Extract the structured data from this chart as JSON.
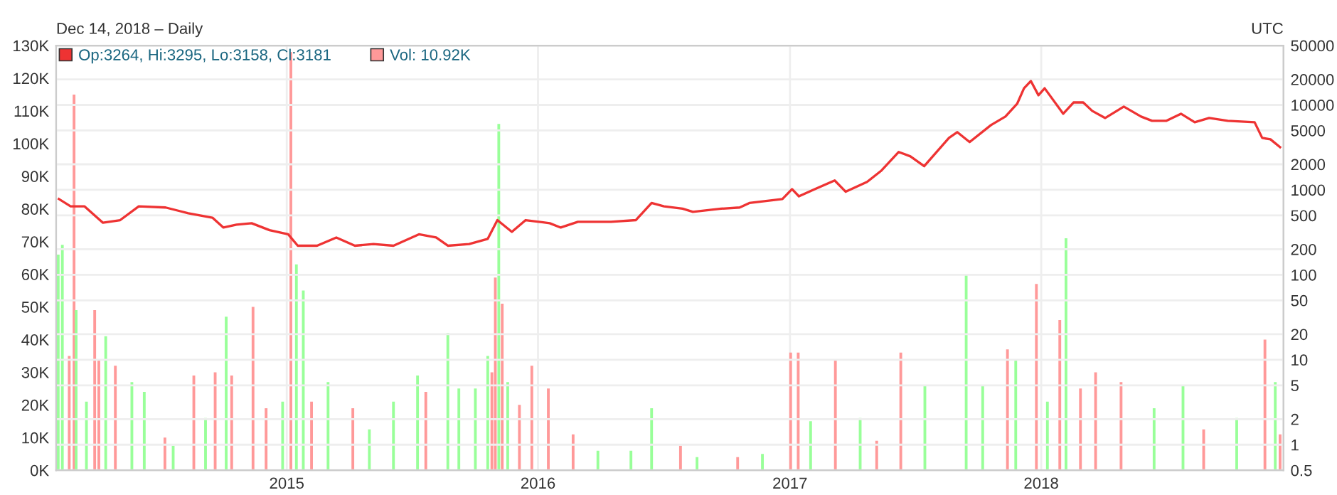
{
  "chart_data": {
    "type": "line",
    "subtitle": "Dec 14, 2018 – Daily",
    "annotations": [
      "UTC"
    ],
    "xlim": [
      "2014-01-31",
      "2018-12-19"
    ],
    "xticks": [
      {
        "value": "2015-01-01",
        "label": "2015"
      },
      {
        "value": "2016-01-01",
        "label": "2016"
      },
      {
        "value": "2017-01-01",
        "label": "2017"
      },
      {
        "value": "2018-01-01",
        "label": "2018"
      }
    ],
    "ylim": [
      0,
      130
    ],
    "yticks": [
      {
        "value": 0,
        "label": "0K"
      },
      {
        "value": 10,
        "label": "10K"
      },
      {
        "value": 20,
        "label": "20K"
      },
      {
        "value": 30,
        "label": "30K"
      },
      {
        "value": 40,
        "label": "40K"
      },
      {
        "value": 50,
        "label": "50K"
      },
      {
        "value": 60,
        "label": "60K"
      },
      {
        "value": 70,
        "label": "70K"
      },
      {
        "value": 80,
        "label": "80K"
      },
      {
        "value": 90,
        "label": "90K"
      },
      {
        "value": 100,
        "label": "100K"
      },
      {
        "value": 110,
        "label": "110K"
      },
      {
        "value": 120,
        "label": "120K"
      },
      {
        "value": 130,
        "label": "130K"
      }
    ],
    "y2lim": [
      0.5,
      50000
    ],
    "y2ticks": [
      0.5,
      1,
      2,
      5,
      10,
      20,
      50,
      100,
      200,
      500,
      1000,
      2000,
      5000,
      10000,
      20000,
      50000
    ],
    "log": "y2",
    "grid": true,
    "legend": "top left",
    "series": [
      {
        "name": "Op:3264, Hi:3295, Lo:3158, Cl:3181",
        "axis": "y2",
        "color": "#ee3333",
        "x": [
          "2014-02-04",
          "2014-02-21",
          "2014-03-13",
          "2014-04-09",
          "2014-05-04",
          "2014-05-31",
          "2014-07-09",
          "2014-08-11",
          "2014-09-15",
          "2014-10-01",
          "2014-10-20",
          "2014-11-11",
          "2014-12-07",
          "2015-01-03",
          "2015-01-17",
          "2015-02-14",
          "2015-03-14",
          "2015-04-10",
          "2015-05-07",
          "2015-06-05",
          "2015-07-12",
          "2015-08-06",
          "2015-08-23",
          "2015-09-23",
          "2015-10-20",
          "2015-11-03",
          "2015-11-24",
          "2015-12-14",
          "2016-01-18",
          "2016-02-03",
          "2016-02-28",
          "2016-04-16",
          "2016-05-22",
          "2016-06-14",
          "2016-07-02",
          "2016-07-29",
          "2016-08-13",
          "2016-09-23",
          "2016-10-20",
          "2016-11-03",
          "2016-12-21",
          "2017-01-04",
          "2017-01-14",
          "2017-02-06",
          "2017-03-07",
          "2017-03-23",
          "2017-04-23",
          "2017-05-14",
          "2017-06-08",
          "2017-06-25",
          "2017-07-15",
          "2017-08-20",
          "2017-09-01",
          "2017-09-19",
          "2017-10-20",
          "2017-11-10",
          "2017-11-27",
          "2017-12-07",
          "2017-12-17",
          "2017-12-28",
          "2018-01-06",
          "2018-02-02",
          "2018-02-17",
          "2018-03-03",
          "2018-03-16",
          "2018-04-04",
          "2018-05-01",
          "2018-05-26",
          "2018-06-11",
          "2018-07-02",
          "2018-07-23",
          "2018-08-12",
          "2018-09-02",
          "2018-09-29",
          "2018-11-07",
          "2018-11-18",
          "2018-11-30",
          "2018-12-14"
        ],
        "values": [
          780,
          640,
          640,
          410,
          440,
          640,
          620,
          530,
          470,
          360,
          390,
          405,
          335,
          300,
          220,
          220,
          275,
          220,
          230,
          220,
          300,
          275,
          220,
          230,
          265,
          440,
          320,
          440,
          405,
          360,
          420,
          420,
          440,
          700,
          640,
          600,
          550,
          600,
          620,
          700,
          780,
          1020,
          840,
          1020,
          1290,
          950,
          1240,
          1690,
          2790,
          2480,
          1900,
          4090,
          4780,
          3650,
          5790,
          7300,
          10300,
          15700,
          19100,
          13000,
          15700,
          7870,
          10700,
          10700,
          8510,
          7010,
          9550,
          7300,
          6500,
          6500,
          7870,
          6250,
          7010,
          6500,
          6250,
          4090,
          3935,
          3181
        ]
      },
      {
        "name": "Vol: 10.92K",
        "type": "bar",
        "color": "#ff9999",
        "x": [
          "2014-02-03",
          "2014-02-09",
          "2014-02-19",
          "2014-02-26",
          "2014-03-01",
          "2014-03-16",
          "2014-03-28",
          "2014-04-03",
          "2014-04-13",
          "2014-04-27",
          "2014-05-21",
          "2014-06-08",
          "2014-07-08",
          "2014-07-20",
          "2014-08-19",
          "2014-09-05",
          "2014-09-19",
          "2014-10-05",
          "2014-10-13",
          "2014-11-13",
          "2014-12-02",
          "2014-12-26",
          "2015-01-07",
          "2015-01-15",
          "2015-01-25",
          "2015-02-06",
          "2015-03-02",
          "2015-04-07",
          "2015-05-01",
          "2015-06-05",
          "2015-07-10",
          "2015-07-22",
          "2015-08-23",
          "2015-09-08",
          "2015-10-02",
          "2015-10-20",
          "2015-10-26",
          "2015-10-31",
          "2015-11-05",
          "2015-11-10",
          "2015-11-18",
          "2015-12-05",
          "2015-12-23",
          "2016-01-16",
          "2016-02-21",
          "2016-03-28",
          "2016-05-15",
          "2016-06-14",
          "2016-07-26",
          "2016-08-19",
          "2016-10-17",
          "2016-11-22",
          "2017-01-02",
          "2017-01-13",
          "2017-01-31",
          "2017-03-08",
          "2017-04-13",
          "2017-05-07",
          "2017-06-11",
          "2017-07-16",
          "2017-09-14",
          "2017-10-08",
          "2017-11-13",
          "2017-11-25",
          "2017-12-25",
          "2018-01-10",
          "2018-01-28",
          "2018-02-06",
          "2018-02-27",
          "2018-03-21",
          "2018-04-27",
          "2018-06-14",
          "2018-07-26",
          "2018-08-25",
          "2018-10-12",
          "2018-11-22",
          "2018-12-07",
          "2018-12-14"
        ],
        "values": [
          66,
          69,
          35,
          115,
          49,
          21,
          49,
          34,
          41,
          32,
          27,
          24,
          10,
          7.5,
          29,
          16,
          30,
          47,
          29,
          50,
          19,
          21,
          128,
          63,
          55,
          21,
          27,
          19,
          12.5,
          21,
          29,
          24,
          42,
          25,
          25,
          35,
          30,
          59,
          106,
          51,
          27,
          20,
          32,
          25,
          11,
          6,
          6,
          19,
          7.5,
          4,
          4,
          5,
          36,
          36,
          15,
          34,
          16,
          9,
          36,
          26,
          60,
          26,
          37,
          34,
          57,
          21,
          46,
          71,
          25,
          30,
          27,
          19,
          26,
          12.5,
          16,
          40,
          27,
          11
        ],
        "colors": [
          "#99ff99",
          "#99ff99",
          "#ff9999",
          "#ff9999",
          "#99ff99",
          "#99ff99",
          "#ff9999",
          "#ff9999",
          "#99ff99",
          "#ff9999",
          "#99ff99",
          "#99ff99",
          "#ff9999",
          "#99ff99",
          "#ff9999",
          "#99ff99",
          "#ff9999",
          "#99ff99",
          "#ff9999",
          "#ff9999",
          "#ff9999",
          "#99ff99",
          "#ff9999",
          "#99ff99",
          "#99ff99",
          "#ff9999",
          "#99ff99",
          "#ff9999",
          "#99ff99",
          "#99ff99",
          "#99ff99",
          "#ff9999",
          "#99ff99",
          "#99ff99",
          "#99ff99",
          "#99ff99",
          "#ff9999",
          "#ff9999",
          "#99ff99",
          "#ff9999",
          "#99ff99",
          "#ff9999",
          "#ff9999",
          "#ff9999",
          "#ff9999",
          "#99ff99",
          "#99ff99",
          "#99ff99",
          "#ff9999",
          "#99ff99",
          "#ff9999",
          "#99ff99",
          "#ff9999",
          "#ff9999",
          "#99ff99",
          "#ff9999",
          "#99ff99",
          "#ff9999",
          "#ff9999",
          "#99ff99",
          "#99ff99",
          "#99ff99",
          "#ff9999",
          "#99ff99",
          "#ff9999",
          "#99ff99",
          "#ff9999",
          "#99ff99",
          "#ff9999",
          "#ff9999",
          "#ff9999",
          "#99ff99",
          "#99ff99",
          "#ff9999",
          "#99ff99",
          "#ff9999",
          "#99ff99",
          "#ff9999"
        ]
      }
    ]
  }
}
